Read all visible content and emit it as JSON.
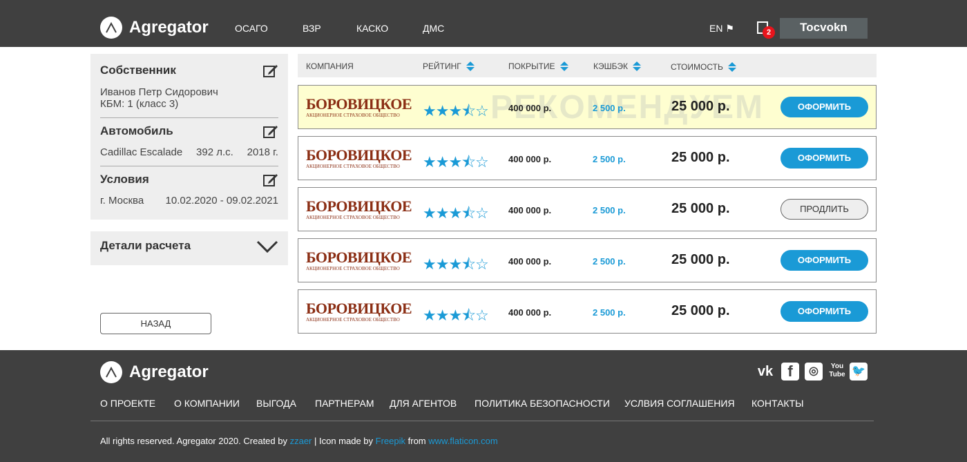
{
  "header": {
    "logo": "Agregator",
    "nav": [
      "ОСАГО",
      "ВЗР",
      "КАСКО",
      "ДМС"
    ],
    "lang": "EN",
    "notifications": "2",
    "user": "Tocvokn"
  },
  "sidebar": {
    "owner": {
      "title": "Собственник",
      "name": "Иванов Петр Сидорович",
      "kbm": "КБМ: 1 (класс 3)"
    },
    "car": {
      "title": "Автомобиль",
      "model": "Cadillac Escalade",
      "power": "392 л.с.",
      "year": "2018 г."
    },
    "terms": {
      "title": "Условия",
      "city": "г. Москва",
      "period": "10.02.2020 - 09.02.2021"
    },
    "details": "Детали расчета",
    "back": "НАЗАД"
  },
  "table": {
    "headers": [
      "КОМПАНИЯ",
      "РЕЙТИНГ",
      "ПОКРЫТИЕ",
      "КЭШБЭК",
      "СТОИМОСТЬ"
    ],
    "recommend": "РЕКОМЕНДУЕМ",
    "rows": [
      {
        "company": "БОРОВИЦКОЕ",
        "sub": "АКЦИОНЕРНОЕ СТРАХОВОЕ ОБЩЕСТВО",
        "rating": 3.5,
        "coverage": "400 000 р.",
        "cashback": "2 500 р.",
        "price": "25 000 р.",
        "action": "ОФОРМИТЬ",
        "recommended": true
      },
      {
        "company": "БОРОВИЦКОЕ",
        "sub": "АКЦИОНЕРНОЕ СТРАХОВОЕ ОБЩЕСТВО",
        "rating": 3.5,
        "coverage": "400 000 р.",
        "cashback": "2 500 р.",
        "price": "25 000 р.",
        "action": "ОФОРМИТЬ"
      },
      {
        "company": "БОРОВИЦКОЕ",
        "sub": "АКЦИОНЕРНОЕ СТРАХОВОЕ ОБЩЕСТВО",
        "rating": 3.5,
        "coverage": "400 000 р.",
        "cashback": "2 500 р.",
        "price": "25 000 р.",
        "action": "ПРОДЛИТЬ",
        "alt": true
      },
      {
        "company": "БОРОВИЦКОЕ",
        "sub": "АКЦИОНЕРНОЕ СТРАХОВОЕ ОБЩЕСТВО",
        "rating": 3.5,
        "coverage": "400 000 р.",
        "cashback": "2 500 р.",
        "price": "25 000 р.",
        "action": "ОФОРМИТЬ"
      },
      {
        "company": "БОРОВИЦКОЕ",
        "sub": "АКЦИОНЕРНОЕ СТРАХОВОЕ ОБЩЕСТВО",
        "rating": 3.5,
        "coverage": "400 000 р.",
        "cashback": "2 500 р.",
        "price": "25 000 р.",
        "action": "ОФОРМИТЬ"
      }
    ]
  },
  "footer": {
    "logo": "Agregator",
    "social": [
      "vk-icon",
      "facebook-icon",
      "instagram-icon",
      "youtube-icon",
      "twitter-icon"
    ],
    "nav": [
      "О ПРОЕКТЕ",
      "О КОМПАНИИ",
      "ВЫГОДА",
      "ПАРТНЕРАМ",
      "ДЛЯ АГЕНТОВ",
      "ПОЛИТИКА БЕЗОПАСНОСТИ",
      "УСЛВИЯ СОГЛАШЕНИЯ",
      "КОНТАКТЫ"
    ],
    "copy_pre": "All  rights reserved. Agregator 2020. Created by ",
    "author": "zzaer",
    "copy_mid": " | Icon made by ",
    "freepik": "Freepik",
    "copy_from": " from ",
    "flaticon": "www.flaticon.com"
  },
  "colors": {
    "accent": "#1a9ad6",
    "header_bg": "#404040",
    "recommended_bg": "#fefed0",
    "brand": "#8b2e14"
  }
}
